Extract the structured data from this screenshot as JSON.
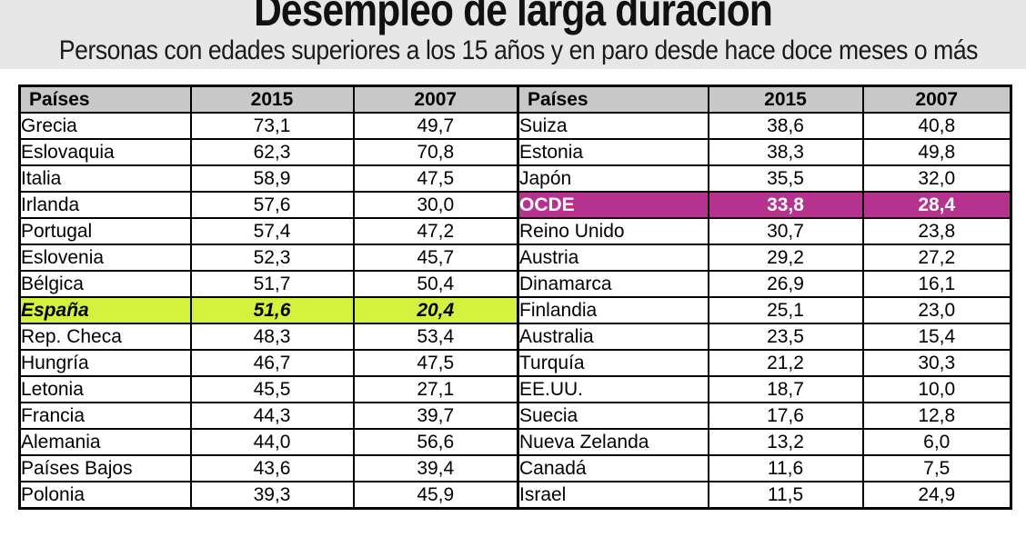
{
  "header": {
    "title": "Desempleo de larga duración",
    "subtitle": "Personas con edades superiores a los 15 años y en paro desde hace doce meses o más"
  },
  "table": {
    "columns": [
      "Países",
      "2015",
      "2007"
    ],
    "rows": [
      {
        "left": {
          "country": "Grecia",
          "v2015": "73,1",
          "v2007": "49,7",
          "highlight": null
        },
        "right": {
          "country": "Suiza",
          "v2015": "38,6",
          "v2007": "40,8",
          "highlight": null
        }
      },
      {
        "left": {
          "country": "Eslovaquia",
          "v2015": "62,3",
          "v2007": "70,8",
          "highlight": null
        },
        "right": {
          "country": "Estonia",
          "v2015": "38,3",
          "v2007": "49,8",
          "highlight": null
        }
      },
      {
        "left": {
          "country": "Italia",
          "v2015": "58,9",
          "v2007": "47,5",
          "highlight": null
        },
        "right": {
          "country": "Japón",
          "v2015": "35,5",
          "v2007": "32,0",
          "highlight": null
        }
      },
      {
        "left": {
          "country": "Irlanda",
          "v2015": "57,6",
          "v2007": "30,0",
          "highlight": null
        },
        "right": {
          "country": "OCDE",
          "v2015": "33,8",
          "v2007": "28,4",
          "highlight": "magenta"
        }
      },
      {
        "left": {
          "country": "Portugal",
          "v2015": "57,4",
          "v2007": "47,2",
          "highlight": null
        },
        "right": {
          "country": "Reino Unido",
          "v2015": "30,7",
          "v2007": "23,8",
          "highlight": null
        }
      },
      {
        "left": {
          "country": "Eslovenia",
          "v2015": "52,3",
          "v2007": "45,7",
          "highlight": null
        },
        "right": {
          "country": "Austria",
          "v2015": "29,2",
          "v2007": "27,2",
          "highlight": null
        }
      },
      {
        "left": {
          "country": "Bélgica",
          "v2015": "51,7",
          "v2007": "50,4",
          "highlight": null
        },
        "right": {
          "country": "Dinamarca",
          "v2015": "26,9",
          "v2007": "16,1",
          "highlight": null
        }
      },
      {
        "left": {
          "country": "España",
          "v2015": "51,6",
          "v2007": "20,4",
          "highlight": "green"
        },
        "right": {
          "country": "Finlandia",
          "v2015": "25,1",
          "v2007": "23,0",
          "highlight": null
        }
      },
      {
        "left": {
          "country": "Rep. Checa",
          "v2015": "48,3",
          "v2007": "53,4",
          "highlight": null
        },
        "right": {
          "country": "Australia",
          "v2015": "23,5",
          "v2007": "15,4",
          "highlight": null
        }
      },
      {
        "left": {
          "country": "Hungría",
          "v2015": "46,7",
          "v2007": "47,5",
          "highlight": null
        },
        "right": {
          "country": "Turquía",
          "v2015": "21,2",
          "v2007": "30,3",
          "highlight": null
        }
      },
      {
        "left": {
          "country": "Letonia",
          "v2015": "45,5",
          "v2007": "27,1",
          "highlight": null
        },
        "right": {
          "country": "EE.UU.",
          "v2015": "18,7",
          "v2007": "10,0",
          "highlight": null
        }
      },
      {
        "left": {
          "country": "Francia",
          "v2015": "44,3",
          "v2007": "39,7",
          "highlight": null
        },
        "right": {
          "country": "Suecia",
          "v2015": "17,6",
          "v2007": "12,8",
          "highlight": null
        }
      },
      {
        "left": {
          "country": "Alemania",
          "v2015": "44,0",
          "v2007": "56,6",
          "highlight": null
        },
        "right": {
          "country": "Nueva Zelanda",
          "v2015": "13,2",
          "v2007": "6,0",
          "highlight": null
        }
      },
      {
        "left": {
          "country": "Países Bajos",
          "v2015": "43,6",
          "v2007": "39,4",
          "highlight": null
        },
        "right": {
          "country": "Canadá",
          "v2015": "11,6",
          "v2007": "7,5",
          "highlight": null
        }
      },
      {
        "left": {
          "country": "Polonia",
          "v2015": "39,3",
          "v2007": "45,9",
          "highlight": null
        },
        "right": {
          "country": "Israel",
          "v2015": "11,5",
          "v2007": "24,9",
          "highlight": null
        }
      }
    ]
  },
  "colors": {
    "spain_highlight": "#d4f23d",
    "ocde_highlight": "#b5338f",
    "header_bg": "#c8c8c8",
    "band_bg": "#e7e7e7",
    "border": "#000000"
  },
  "chart_data": {
    "type": "table",
    "title": "Desempleo de larga duración",
    "subtitle": "Personas con edades superiores a los 15 años y en paro desde hace doce meses o más",
    "columns": [
      "Países",
      "2015",
      "2007"
    ],
    "series": [
      {
        "name": "2015",
        "values": [
          73.1,
          62.3,
          58.9,
          57.6,
          57.4,
          52.3,
          51.7,
          51.6,
          48.3,
          46.7,
          45.5,
          44.3,
          44.0,
          43.6,
          39.3,
          38.6,
          38.3,
          35.5,
          33.8,
          30.7,
          29.2,
          26.9,
          25.1,
          23.5,
          21.2,
          18.7,
          17.6,
          13.2,
          11.6,
          11.5
        ]
      },
      {
        "name": "2007",
        "values": [
          49.7,
          70.8,
          47.5,
          30.0,
          47.2,
          45.7,
          50.4,
          20.4,
          53.4,
          47.5,
          27.1,
          39.7,
          56.6,
          39.4,
          45.9,
          40.8,
          49.8,
          32.0,
          28.4,
          23.8,
          27.2,
          16.1,
          23.0,
          15.4,
          30.3,
          10.0,
          12.8,
          6.0,
          7.5,
          24.9
        ]
      }
    ],
    "categories": [
      "Grecia",
      "Eslovaquia",
      "Italia",
      "Irlanda",
      "Portugal",
      "Eslovenia",
      "Bélgica",
      "España",
      "Rep. Checa",
      "Hungría",
      "Letonia",
      "Francia",
      "Alemania",
      "Países Bajos",
      "Polonia",
      "Suiza",
      "Estonia",
      "Japón",
      "OCDE",
      "Reino Unido",
      "Austria",
      "Dinamarca",
      "Finlandia",
      "Australia",
      "Turquía",
      "EE.UU.",
      "Suecia",
      "Nueva Zelanda",
      "Canadá",
      "Israel"
    ],
    "highlighted_rows": {
      "España": "green",
      "OCDE": "magenta"
    },
    "layout": "two side-by-side table halves, 15 rows each"
  }
}
